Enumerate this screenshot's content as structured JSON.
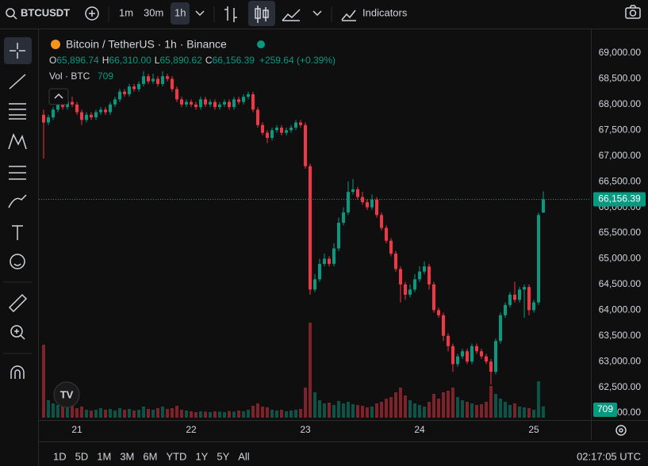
{
  "toolbar": {
    "symbol": "BTCUSDT",
    "intervals": [
      "1m",
      "30m",
      "1h"
    ],
    "indicators": "Indicators"
  },
  "legend": {
    "title": "Bitcoin / TetherUS · 1h · Binance",
    "ohlc": [
      {
        "key": "O",
        "value": "65,896.74"
      },
      {
        "key": "H",
        "value": "66,310.00"
      },
      {
        "key": "L",
        "value": "65,890.62"
      },
      {
        "key": "C",
        "value": "66,156.39"
      }
    ],
    "change": "+259.64 (+0.39%)",
    "volume_title": "Vol · BTC"
  },
  "chart_data": {
    "type": "candlestick",
    "up_color": "#089981",
    "down_color": "#f23645",
    "ylim": [
      61908,
      69447
    ],
    "yticks": [
      {
        "value": 62000,
        "label": "62,000.00"
      },
      {
        "value": 62500,
        "label": "62,500.00"
      },
      {
        "value": 63000,
        "label": "63,000.00"
      },
      {
        "value": 63500,
        "label": "63,500.00"
      },
      {
        "value": 64000,
        "label": "64,000.00"
      },
      {
        "value": 64500,
        "label": "64,500.00"
      },
      {
        "value": 65000,
        "label": "65,000.00"
      },
      {
        "value": 65500,
        "label": "65,500.00"
      },
      {
        "value": 66000,
        "label": "66,000.00"
      },
      {
        "value": 66500,
        "label": "66,500.00"
      },
      {
        "value": 67000,
        "label": "67,000.00"
      },
      {
        "value": 67500,
        "label": "67,500.00"
      },
      {
        "value": 68000,
        "label": "68,000.00"
      },
      {
        "value": 68500,
        "label": "68,500.00"
      },
      {
        "value": 69000,
        "label": "69,000.00"
      }
    ],
    "xticks": [
      {
        "value": 7,
        "label": "21"
      },
      {
        "value": 31,
        "label": "22"
      },
      {
        "value": 55,
        "label": "23"
      },
      {
        "value": 79,
        "label": "24"
      },
      {
        "value": 103,
        "label": "25"
      }
    ],
    "candles": [
      [
        67800,
        67900,
        66950,
        67650
      ],
      [
        67650,
        67800,
        67600,
        67750
      ],
      [
        67750,
        67950,
        67700,
        67900
      ],
      [
        67900,
        68050,
        67850,
        68000
      ],
      [
        68000,
        68100,
        67900,
        67950
      ],
      [
        67950,
        68100,
        67900,
        68050
      ],
      [
        68050,
        68150,
        67950,
        68000
      ],
      [
        68000,
        68050,
        67800,
        67850
      ],
      [
        67850,
        67900,
        67600,
        67700
      ],
      [
        67700,
        67850,
        67650,
        67800
      ],
      [
        67800,
        67850,
        67700,
        67750
      ],
      [
        67750,
        67900,
        67700,
        67850
      ],
      [
        67850,
        67950,
        67800,
        67900
      ],
      [
        67900,
        67950,
        67800,
        67850
      ],
      [
        67850,
        68050,
        67800,
        68000
      ],
      [
        68000,
        68150,
        67950,
        68100
      ],
      [
        68100,
        68300,
        68050,
        68250
      ],
      [
        68250,
        68300,
        68150,
        68200
      ],
      [
        68200,
        68400,
        68150,
        68350
      ],
      [
        68350,
        68400,
        68250,
        68300
      ],
      [
        68300,
        68450,
        68250,
        68400
      ],
      [
        68400,
        68650,
        68350,
        68550
      ],
      [
        68550,
        68600,
        68400,
        68450
      ],
      [
        68450,
        68600,
        68400,
        68500
      ],
      [
        68500,
        68550,
        68350,
        68400
      ],
      [
        68400,
        68650,
        68350,
        68550
      ],
      [
        68550,
        68600,
        68450,
        68500
      ],
      [
        68500,
        68550,
        68250,
        68300
      ],
      [
        68300,
        68350,
        68050,
        68100
      ],
      [
        68100,
        68150,
        67950,
        68000
      ],
      [
        68000,
        68100,
        67950,
        68050
      ],
      [
        68050,
        68100,
        67950,
        68000
      ],
      [
        68000,
        68050,
        67900,
        67950
      ],
      [
        67950,
        68150,
        67900,
        68100
      ],
      [
        68100,
        68150,
        67950,
        68000
      ],
      [
        68000,
        68100,
        67950,
        68050
      ],
      [
        68050,
        68100,
        67900,
        67950
      ],
      [
        67950,
        68050,
        67900,
        68000
      ],
      [
        68000,
        68100,
        67950,
        68050
      ],
      [
        68050,
        68100,
        67900,
        67950
      ],
      [
        67950,
        68150,
        67900,
        68100
      ],
      [
        68100,
        68150,
        68000,
        68050
      ],
      [
        68050,
        68200,
        68000,
        68150
      ],
      [
        68150,
        68250,
        68100,
        68200
      ],
      [
        68200,
        68250,
        67850,
        67900
      ],
      [
        67900,
        67950,
        67550,
        67600
      ],
      [
        67600,
        67650,
        67400,
        67450
      ],
      [
        67450,
        67500,
        67250,
        67350
      ],
      [
        67350,
        67550,
        67300,
        67500
      ],
      [
        67500,
        67600,
        67450,
        67550
      ],
      [
        67550,
        67600,
        67400,
        67450
      ],
      [
        67450,
        67550,
        67400,
        67500
      ],
      [
        67500,
        67600,
        67450,
        67550
      ],
      [
        67550,
        67700,
        67500,
        67650
      ],
      [
        67650,
        67700,
        67550,
        67600
      ],
      [
        67600,
        67650,
        66750,
        66800
      ],
      [
        66800,
        66850,
        64300,
        64400
      ],
      [
        64400,
        64700,
        64350,
        64600
      ],
      [
        64600,
        65000,
        64550,
        64900
      ],
      [
        64900,
        65100,
        64850,
        65000
      ],
      [
        65000,
        65050,
        64850,
        64900
      ],
      [
        64900,
        65300,
        64850,
        65200
      ],
      [
        65200,
        65800,
        65150,
        65700
      ],
      [
        65700,
        66000,
        65650,
        65900
      ],
      [
        65900,
        66500,
        65850,
        66300
      ],
      [
        66300,
        66550,
        66250,
        66350
      ],
      [
        66350,
        66400,
        66150,
        66200
      ],
      [
        66200,
        66300,
        66050,
        66100
      ],
      [
        66100,
        66150,
        65950,
        66000
      ],
      [
        66000,
        66250,
        65950,
        66150
      ],
      [
        66150,
        66200,
        65800,
        65850
      ],
      [
        65850,
        65900,
        65550,
        65600
      ],
      [
        65600,
        65650,
        65300,
        65350
      ],
      [
        65350,
        65400,
        65050,
        65100
      ],
      [
        65100,
        65150,
        64750,
        64800
      ],
      [
        64800,
        64850,
        64150,
        64500
      ],
      [
        64500,
        64550,
        64200,
        64300
      ],
      [
        64300,
        64500,
        64250,
        64400
      ],
      [
        64400,
        64700,
        64350,
        64600
      ],
      [
        64600,
        64850,
        64550,
        64750
      ],
      [
        64750,
        64950,
        64700,
        64850
      ],
      [
        64850,
        64900,
        64400,
        64500
      ],
      [
        64500,
        64550,
        63950,
        64000
      ],
      [
        64000,
        64050,
        63850,
        63900
      ],
      [
        63900,
        63950,
        63400,
        63500
      ],
      [
        63500,
        63550,
        63200,
        63300
      ],
      [
        63300,
        63350,
        62800,
        62950
      ],
      [
        62950,
        63150,
        62900,
        63100
      ],
      [
        63100,
        63250,
        63050,
        63200
      ],
      [
        63200,
        63250,
        62950,
        63000
      ],
      [
        63000,
        63350,
        62950,
        63300
      ],
      [
        63300,
        63350,
        63150,
        63200
      ],
      [
        63200,
        63250,
        63050,
        63100
      ],
      [
        63100,
        63150,
        62950,
        63000
      ],
      [
        63000,
        63050,
        62550,
        62800
      ],
      [
        62800,
        63450,
        62750,
        63400
      ],
      [
        63400,
        63950,
        63350,
        63900
      ],
      [
        63900,
        64150,
        63850,
        64100
      ],
      [
        64100,
        64350,
        64050,
        64300
      ],
      [
        64300,
        64550,
        64150,
        64200
      ],
      [
        64200,
        64450,
        64150,
        64400
      ],
      [
        64400,
        64500,
        63850,
        64450
      ],
      [
        64450,
        64500,
        63900,
        64000
      ],
      [
        64000,
        64200,
        63950,
        64150
      ],
      [
        64150,
        65900,
        64100,
        65850
      ],
      [
        65896.74,
        66310,
        65890.62,
        66156.39
      ]
    ],
    "volumes": [
      4600,
      1100,
      900,
      800,
      700,
      900,
      800,
      600,
      700,
      500,
      450,
      500,
      600,
      500,
      550,
      450,
      600,
      500,
      550,
      450,
      500,
      700,
      550,
      500,
      600,
      700,
      550,
      600,
      750,
      500,
      450,
      400,
      350,
      400,
      380,
      350,
      400,
      380,
      350,
      420,
      380,
      450,
      400,
      500,
      750,
      900,
      700,
      650,
      500,
      450,
      500,
      400,
      450,
      500,
      550,
      1900,
      6000,
      1600,
      1100,
      900,
      950,
      800,
      1050,
      900,
      1000,
      850,
      800,
      750,
      650,
      700,
      900,
      1000,
      1200,
      1300,
      1600,
      1900,
      1400,
      1100,
      900,
      800,
      700,
      1000,
      1500,
      1200,
      1600,
      1700,
      1900,
      1300,
      1100,
      1000,
      900,
      800,
      850,
      1000,
      2000,
      1500,
      1200,
      1000,
      800,
      900,
      700,
      650,
      600,
      500,
      2300,
      709
    ]
  },
  "ranges": [
    "1D",
    "5D",
    "1M",
    "3M",
    "6M",
    "YTD",
    "1Y",
    "5Y",
    "All"
  ],
  "clock": "02:17:05 UTC"
}
